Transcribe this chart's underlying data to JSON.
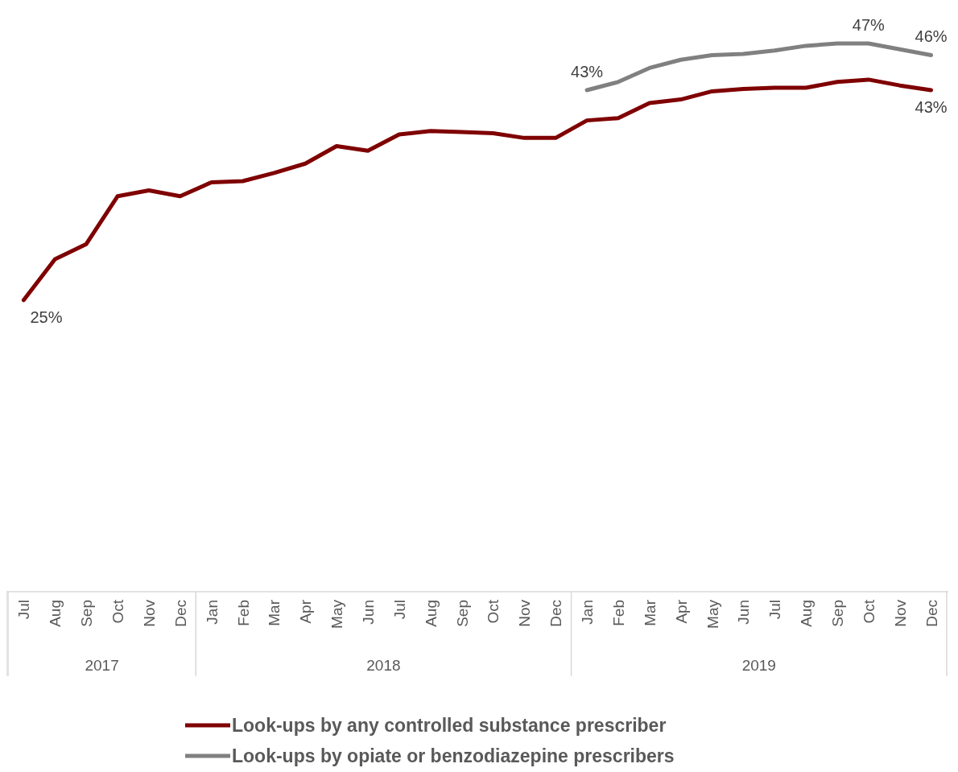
{
  "chart_data": {
    "type": "line",
    "categories": [
      "Jul",
      "Aug",
      "Sep",
      "Oct",
      "Nov",
      "Dec",
      "Jan",
      "Feb",
      "Mar",
      "Apr",
      "May",
      "Jun",
      "Jul",
      "Aug",
      "Sep",
      "Oct",
      "Nov",
      "Dec",
      "Jan",
      "Feb",
      "Mar",
      "Apr",
      "May",
      "Jun",
      "Jul",
      "Aug",
      "Sep",
      "Oct",
      "Nov",
      "Dec"
    ],
    "annotations": [
      "2017",
      "2018",
      "2019"
    ],
    "series": [
      {
        "name": "Look-ups by any controlled substance prescriber",
        "color": "#7f0000",
        "values": [
          25,
          28.5,
          29.8,
          33.9,
          34.4,
          33.9,
          35.1,
          35.2,
          35.9,
          36.7,
          38.2,
          37.8,
          39.2,
          39.5,
          39.4,
          39.3,
          38.9,
          38.9,
          40.4,
          40.6,
          41.9,
          42.2,
          42.9,
          43.1,
          43.2,
          43.2,
          43.7,
          43.9,
          43.4,
          43
        ],
        "value_labels": [
          "25%",
          null,
          null,
          null,
          null,
          null,
          null,
          null,
          null,
          null,
          null,
          null,
          null,
          null,
          null,
          null,
          null,
          null,
          null,
          null,
          null,
          null,
          null,
          null,
          null,
          null,
          null,
          null,
          null,
          "43%"
        ]
      },
      {
        "name": "Look-ups by opiate or benzodiazepine prescribers",
        "color": "#808080",
        "values": [
          null,
          null,
          null,
          null,
          null,
          null,
          null,
          null,
          null,
          null,
          null,
          null,
          null,
          null,
          null,
          null,
          null,
          null,
          43,
          43.7,
          44.9,
          45.6,
          46,
          46.1,
          46.4,
          46.8,
          47,
          47,
          46.5,
          46
        ],
        "value_labels": [
          null,
          null,
          null,
          null,
          null,
          null,
          null,
          null,
          null,
          null,
          null,
          null,
          null,
          null,
          null,
          null,
          null,
          null,
          "43%",
          null,
          null,
          null,
          null,
          null,
          null,
          null,
          null,
          "47%",
          null,
          "46%"
        ]
      }
    ],
    "tick_labels": "x",
    "legend": "bottom",
    "marker": "none",
    "line_style": "solid"
  }
}
